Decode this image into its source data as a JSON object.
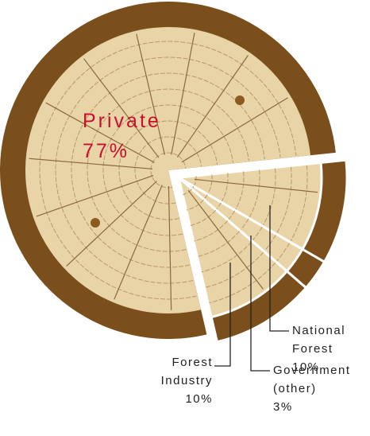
{
  "chart_data": {
    "type": "pie",
    "categories": [
      "National Forest",
      "Government (other)",
      "Forest Industry",
      "Private"
    ],
    "values": [
      10,
      3,
      10,
      77
    ],
    "value_labels": [
      "10%",
      "3%",
      "10%",
      "77%"
    ]
  }
}
